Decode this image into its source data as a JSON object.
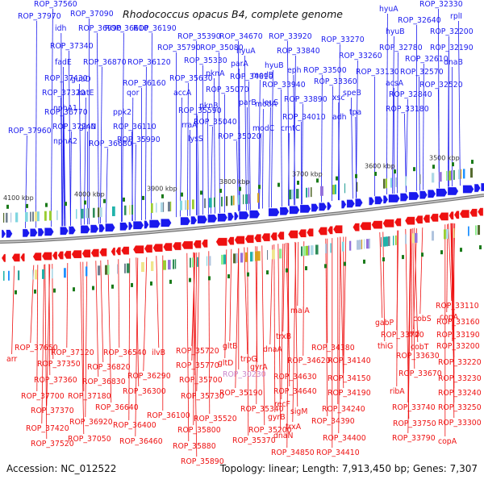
{
  "title": "Rhodococcus opacus B4, complete genome",
  "footer": {
    "accession": "Accession: NC_012522",
    "summary": "Topology: linear; Length: 7,913,450 bp; Genes: 7,307"
  },
  "colors": {
    "plus_strand": "#1a1aee",
    "minus_strand": "#ee1111",
    "highlight_label": "#cc88cc",
    "backbone": "#888888"
  },
  "scale_labels": [
    "4100 kbp",
    "4000 kbp",
    "3900 kbp",
    "3800 kbp",
    "3700 kbp",
    "3600 kbp",
    "3500 kbp"
  ],
  "plus_labels": [
    "ROP_37560",
    "ROP_37970",
    "ROP_37090",
    "idh",
    "ROP_36990",
    "ROP_36610",
    "ROP_36190",
    "ROP_35390",
    "ROP_34670",
    "ROP_33920",
    "ROP_33270",
    "hyuA",
    "ROP_32640",
    "ROP_32330",
    "rplI",
    "hyuB",
    "ROP_32200",
    "ROP_35790",
    "ROP_35080",
    "hyuA",
    "ROP_33840",
    "ROP_32780",
    "ROP_32190",
    "fadE",
    "ROP_37340",
    "ROP_36870",
    "ROP_36120",
    "ROP_35330",
    "parA",
    "eph",
    "ROP_33260",
    "ROP_32610",
    "dnaB",
    "ROP_37430",
    "guaD",
    "hyuB",
    "ROP_33500",
    "ROP_33130",
    "ROP_32570",
    "ROP_37320",
    "katE",
    "qor",
    "ROP_36160",
    "pknA",
    "ROP_34610",
    "modB",
    "ROP_33360",
    "acsA",
    "ROP_32520",
    "nphA1",
    "accA",
    "ROP_35630",
    "ROP_35070",
    "ROP_33940",
    "speB",
    "ROP_32840",
    "ROP_36770",
    "ppk2",
    "pknB",
    "parB",
    "leuS",
    "ROP_33890",
    "xsc",
    "tpa",
    "ROP_33180",
    "ROP_37960",
    "ROP_37240",
    "glnN",
    "ROP_36110",
    "ROP_35590",
    "ROP_35040",
    "modA",
    "ROP_34010",
    "adh",
    "nphA2",
    "ROP_36680",
    "ROP_35990",
    "rraA",
    "lysS",
    "ROP_35020",
    "modC",
    "cmtC"
  ],
  "minus_labels": [
    "ROP_33110",
    "cobS",
    "copA",
    "ROP_33160",
    "gabP",
    "ald",
    "ROP_33720",
    "ROP_33190",
    "thiG",
    "cobT",
    "ROP_33200",
    "maiA",
    "ROP_33630",
    "ROP_33220",
    "ROP_37650",
    "trxB",
    "ROP_34380",
    "ROP_33670",
    "ROP_33230",
    "arr",
    "ROP_37120",
    "ROP_36540",
    "ilvB",
    "ROP_35720",
    "gltB",
    "ROP_34140",
    "ROP_33240",
    "trpG",
    "dnaA",
    "ROP_34620",
    "ROP_37350",
    "ROP_36820",
    "ROP_35770",
    "gltD",
    "ROP_33250",
    "gyrA",
    "ROP_34630",
    "ROP_34150",
    "ribA",
    "ROP_37360",
    "ROP_36830",
    "ROP_36290",
    "ROP_35700",
    "ROP_30230",
    "ROP_34640",
    "ROP_34190",
    "ROP_33740",
    "ROP_37700",
    "ROP_37180",
    "ROP_36300",
    "ROP_35190",
    "recF",
    "ROP_34240",
    "ROP_33300",
    "ROP_36640",
    "ROP_35730",
    "ROP_35340",
    "gyrB",
    "sigM",
    "ROP_37370",
    "ROP_36920",
    "ROP_36100",
    "ROP_34390",
    "ROP_33750",
    "ROP_37420",
    "ROP_36400",
    "ROP_35520",
    "ROP_35200",
    "trxA",
    "ROP_34400",
    "copA",
    "ROP_37520",
    "ROP_37050",
    "ROP_36460",
    "ROP_35800",
    "ROP_35370",
    "dnaN",
    "ROP_33790",
    "ROP_34850",
    "ROP_34410",
    "ROP_35880",
    "ROP_35890"
  ]
}
